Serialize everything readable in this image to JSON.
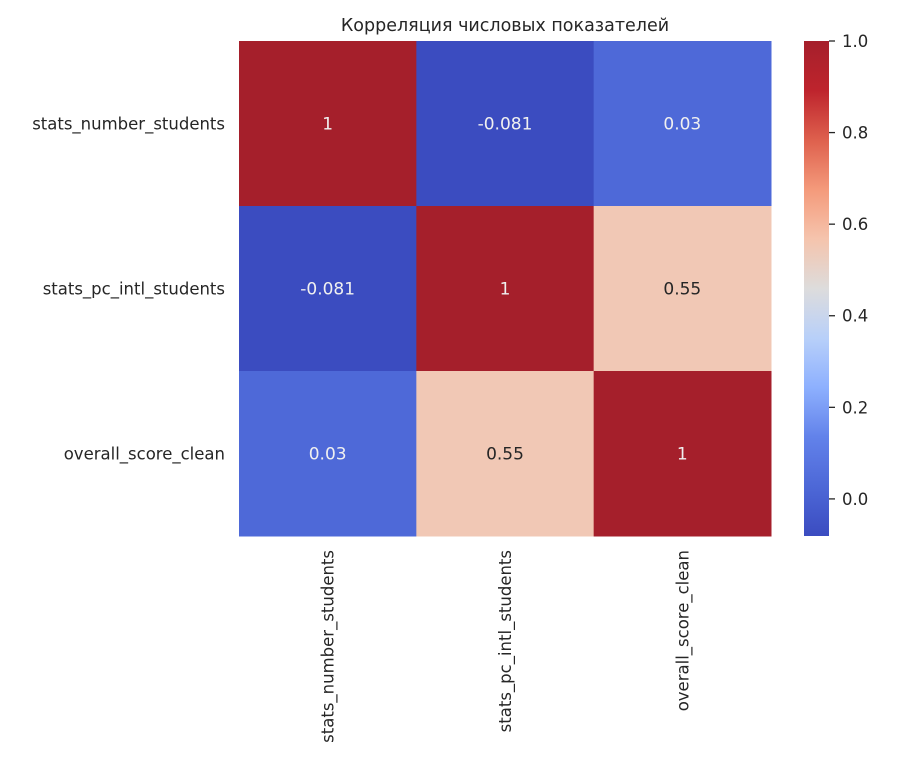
{
  "chart_data": {
    "type": "heatmap",
    "title": "Корреляция числовых показателей",
    "xlabel": "",
    "ylabel": "",
    "row_labels": [
      "stats_number_students",
      "stats_pc_intl_students",
      "overall_score_clean"
    ],
    "col_labels": [
      "stats_number_students",
      "stats_pc_intl_students",
      "overall_score_clean"
    ],
    "values": [
      [
        1,
        -0.081,
        0.03
      ],
      [
        -0.081,
        1,
        0.55
      ],
      [
        0.03,
        0.55,
        1
      ]
    ],
    "annotations": [
      [
        "1",
        "-0.081",
        "0.03"
      ],
      [
        "-0.081",
        "1",
        "0.55"
      ],
      [
        "0.03",
        "0.55",
        "1"
      ]
    ],
    "colormap": "coolwarm",
    "vmin": -0.081,
    "vmax": 1.0,
    "colorbar": {
      "position": "right",
      "ticks": [
        0.0,
        0.2,
        0.4,
        0.6,
        0.8,
        1.0
      ],
      "tick_labels": [
        "0.0",
        "0.2",
        "0.4",
        "0.6",
        "0.8",
        "1.0"
      ]
    },
    "colors": {
      "low": "#3b4cc0",
      "mid": "#dddcdc",
      "high": "#b40426",
      "text_light": "#f0f0f0",
      "text_dark": "#262626"
    },
    "grid": false
  }
}
